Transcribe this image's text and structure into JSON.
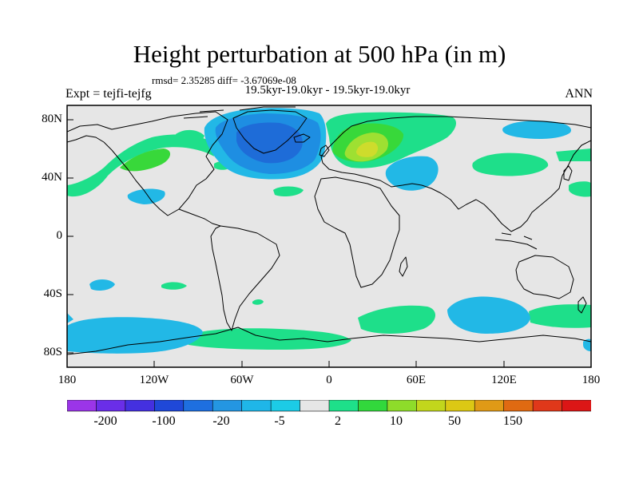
{
  "title": "Height perturbation at 500 hPa (in m)",
  "stats": "rmsd= 2.35285 diff= -3.67069e-08",
  "period": "19.5kyr-19.0kyr - 19.5kyr-19.0kyr",
  "expt": "Expt = tejfi-tejfg",
  "season": "ANN",
  "lat_labels": [
    "80N",
    "40N",
    "0",
    "40S",
    "80S"
  ],
  "lon_labels": [
    "180",
    "120W",
    "60W",
    "0",
    "60E",
    "120E",
    "180"
  ],
  "colorbar": {
    "colors": [
      "#9b35e8",
      "#6a2ee8",
      "#4430e0",
      "#1f48d8",
      "#1e6fe0",
      "#2496e2",
      "#1fb6e8",
      "#1ccbe6",
      "#e6e6e6",
      "#1ee08a",
      "#32d83c",
      "#8edc2a",
      "#c2d61c",
      "#dcc814",
      "#e09a16",
      "#e06a12",
      "#e0381a",
      "#dc1616"
    ],
    "labels": [
      "-200",
      "-100",
      "-20",
      "-5",
      "2",
      "10",
      "50",
      "150"
    ]
  },
  "colors": {
    "background": "#e6e6e6",
    "light_blue": "#22b8e6",
    "blue": "#1e8ee2",
    "dark_blue": "#1e6cd8",
    "green": "#1edf8a",
    "bright_green": "#38d83a",
    "yellow_green": "#9ee032",
    "yellow": "#cedc2c"
  }
}
